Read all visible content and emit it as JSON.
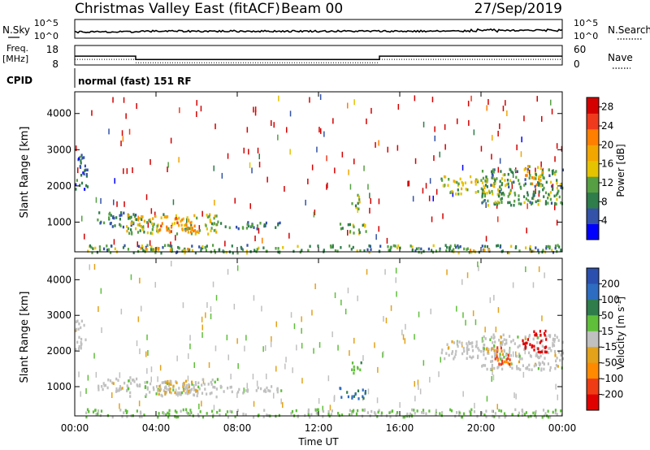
{
  "header": {
    "station": "Christmas Valley East (fitACF)",
    "beam": "Beam 00",
    "date": "27/Sep/2019"
  },
  "noise_panel": {
    "left_label": "N.Sky",
    "right_label": "N.Search",
    "left_ticks": [
      "10^5",
      "10^0"
    ],
    "right_ticks": [
      "10^5",
      "10^0"
    ]
  },
  "freq_panel": {
    "left_label": "Freq.",
    "left_unit": "[MHz]",
    "right_label": "Nave",
    "left_ticks": [
      "18",
      "8"
    ],
    "right_ticks": [
      "60",
      "0"
    ],
    "freq_steps": [
      {
        "from": 0,
        "to": 3,
        "level": 12.5
      },
      {
        "from": 3,
        "to": 15,
        "level": 10.6
      },
      {
        "from": 15,
        "to": 24,
        "level": 12.5
      }
    ]
  },
  "cpid_panel": {
    "label": "CPID",
    "text": "normal (fast) 151 RF"
  },
  "colors": {
    "power": [
      "#0000ff",
      "#3352a8",
      "#2e7d4a",
      "#56a043",
      "#e6c300",
      "#f2a600",
      "#ff7f00",
      "#ef3a1e",
      "#d40000"
    ],
    "velocity": [
      "#2a4fae",
      "#2d6cc0",
      "#2e7d4a",
      "#5fbf3a",
      "#c0c0c0",
      "#e3a21a",
      "#ff8a00",
      "#f03c14",
      "#e00000"
    ]
  },
  "chart_data": [
    {
      "type": "heatmap",
      "title": "",
      "xlabel": "",
      "ylabel": "Slant Range [km]",
      "xlim": [
        0,
        24
      ],
      "ylim": [
        180,
        4600
      ],
      "x_ticks": [
        "00:00",
        "04:00",
        "08:00",
        "12:00",
        "16:00",
        "20:00",
        "00:00"
      ],
      "y_ticks": [
        1000,
        2000,
        3000,
        4000
      ],
      "colorbar": {
        "label": "Power [dB]",
        "ticks": [
          4,
          8,
          12,
          16,
          20,
          24,
          28
        ],
        "range": [
          0,
          30
        ]
      },
      "regions": [
        {
          "t0": 0.0,
          "t1": 0.6,
          "r0": 1900,
          "r1": 2900,
          "value": 6
        },
        {
          "t0": 1.0,
          "t1": 3.0,
          "r0": 900,
          "r1": 1300,
          "value": 8
        },
        {
          "t0": 2.5,
          "t1": 7.0,
          "r0": 700,
          "r1": 1250,
          "value": 14
        },
        {
          "t0": 4.0,
          "t1": 6.0,
          "r0": 750,
          "r1": 1150,
          "value": 20
        },
        {
          "t0": 7.0,
          "t1": 10.2,
          "r0": 850,
          "r1": 1050,
          "value": 8
        },
        {
          "t0": 13.0,
          "t1": 14.3,
          "r0": 700,
          "r1": 1000,
          "value": 12
        },
        {
          "t0": 13.6,
          "t1": 14.1,
          "r0": 1400,
          "r1": 1800,
          "value": 14
        },
        {
          "t0": 18.0,
          "t1": 21.0,
          "r0": 1800,
          "r1": 2300,
          "value": 14
        },
        {
          "t0": 20.0,
          "t1": 24.0,
          "r0": 1500,
          "r1": 2500,
          "value": 10
        },
        {
          "t0": 22.0,
          "t1": 23.0,
          "r0": 2000,
          "r1": 2600,
          "value": 16
        },
        {
          "t0": 0.5,
          "t1": 24.0,
          "r0": 180,
          "r1": 400,
          "value": 10
        },
        {
          "t0": 3.0,
          "t1": 6.0,
          "r0": 240,
          "r1": 320,
          "value": 20
        },
        {
          "t0": 19.0,
          "t1": 20.5,
          "r0": 240,
          "r1": 320,
          "value": 20
        }
      ]
    },
    {
      "type": "heatmap",
      "title": "",
      "xlabel": "Time UT",
      "ylabel": "Slant Range [km]",
      "xlim": [
        0,
        24
      ],
      "ylim": [
        180,
        4600
      ],
      "x_ticks": [
        "00:00",
        "04:00",
        "08:00",
        "12:00",
        "16:00",
        "20:00",
        "00:00"
      ],
      "y_ticks": [
        1000,
        2000,
        3000,
        4000
      ],
      "colorbar": {
        "label": "Velocity [m s^-1]",
        "ticks": [
          200,
          100,
          50,
          15,
          -15,
          -50,
          -100,
          -200
        ],
        "range": [
          -250,
          250
        ]
      },
      "regions": [
        {
          "t0": 0.0,
          "t1": 0.5,
          "r0": 2000,
          "r1": 2900,
          "value": 0
        },
        {
          "t0": 1.0,
          "t1": 3.0,
          "r0": 900,
          "r1": 1300,
          "value": 0
        },
        {
          "t0": 2.5,
          "t1": 7.0,
          "r0": 750,
          "r1": 1250,
          "value": 5
        },
        {
          "t0": 4.0,
          "t1": 6.0,
          "r0": 800,
          "r1": 1200,
          "value": -40
        },
        {
          "t0": 7.0,
          "t1": 10.2,
          "r0": 850,
          "r1": 1050,
          "value": 0
        },
        {
          "t0": 13.0,
          "t1": 14.3,
          "r0": 700,
          "r1": 1000,
          "value": 150
        },
        {
          "t0": 13.6,
          "t1": 14.1,
          "r0": 1400,
          "r1": 1800,
          "value": 60
        },
        {
          "t0": 18.0,
          "t1": 21.0,
          "r0": 1800,
          "r1": 2300,
          "value": 0
        },
        {
          "t0": 20.0,
          "t1": 24.0,
          "r0": 1500,
          "r1": 2500,
          "value": 0
        },
        {
          "t0": 20.6,
          "t1": 21.4,
          "r0": 1600,
          "r1": 2200,
          "value": -150
        },
        {
          "t0": 22.0,
          "t1": 23.2,
          "r0": 2000,
          "r1": 2600,
          "value": -220
        },
        {
          "t0": 0.5,
          "t1": 24.0,
          "r0": 180,
          "r1": 400,
          "value": 30
        }
      ]
    }
  ]
}
